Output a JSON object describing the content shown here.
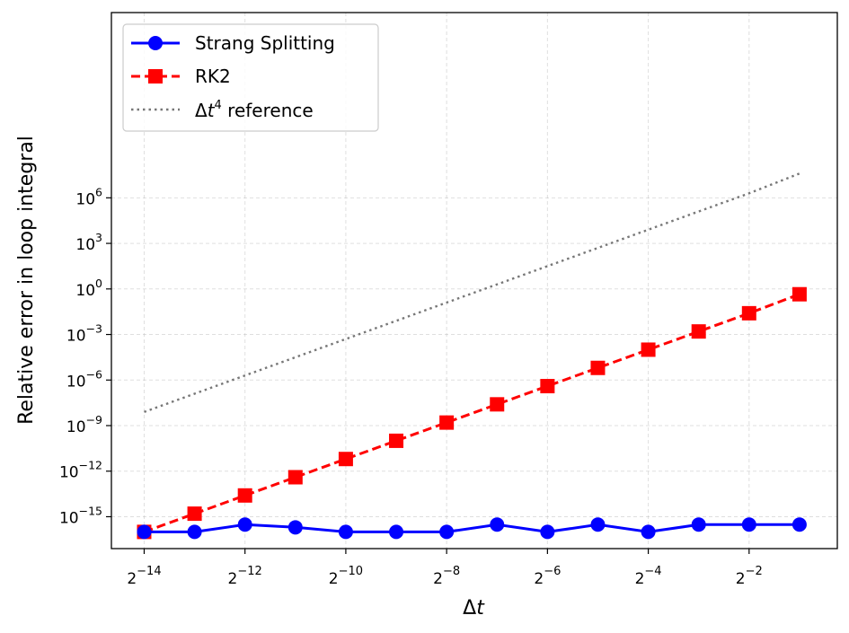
{
  "chart_data": {
    "type": "line",
    "xscale": "log2",
    "yscale": "log10",
    "xlabel_base": "Δ",
    "xlabel_var": "t",
    "ylabel": "Relative error in loop integral",
    "x_exponents": [
      -14,
      -13,
      -12,
      -11,
      -10,
      -9,
      -8,
      -7,
      -6,
      -5,
      -4,
      -3,
      -2,
      -1
    ],
    "xlim_exp": [
      -14.65,
      -0.25
    ],
    "ylim_exp": [
      -17.1,
      18.2
    ],
    "x_ticks": [
      {
        "base": "2",
        "exp": "−14",
        "value": -14
      },
      {
        "base": "2",
        "exp": "−12",
        "value": -12
      },
      {
        "base": "2",
        "exp": "−10",
        "value": -10
      },
      {
        "base": "2",
        "exp": "−8",
        "value": -8
      },
      {
        "base": "2",
        "exp": "−6",
        "value": -6
      },
      {
        "base": "2",
        "exp": "−4",
        "value": -4
      },
      {
        "base": "2",
        "exp": "−2",
        "value": -2
      }
    ],
    "y_ticks": [
      {
        "base": "10",
        "exp": "6",
        "value": 6
      },
      {
        "base": "10",
        "exp": "3",
        "value": 3
      },
      {
        "base": "10",
        "exp": "0",
        "value": 0
      },
      {
        "base": "10",
        "exp": "−3",
        "value": -3
      },
      {
        "base": "10",
        "exp": "−6",
        "value": -6
      },
      {
        "base": "10",
        "exp": "−9",
        "value": -9
      },
      {
        "base": "10",
        "exp": "−12",
        "value": -12
      },
      {
        "base": "10",
        "exp": "−15",
        "value": -15
      }
    ],
    "grid": true,
    "legend_position": "top-left",
    "series": [
      {
        "name": "Strang Splitting",
        "color": "#0000ff",
        "marker": "circle",
        "linestyle": "solid",
        "log10_values": [
          -16.0,
          -16.0,
          -15.52,
          -15.7,
          -16.0,
          -16.0,
          -16.0,
          -15.52,
          -16.0,
          -15.52,
          -16.0,
          -15.52,
          -15.52,
          -15.52
        ]
      },
      {
        "name": "RK2",
        "color": "#ff0000",
        "marker": "square",
        "linestyle": "dashed",
        "log10_values": [
          -16.0,
          -14.8,
          -13.6,
          -12.4,
          -11.2,
          -10.0,
          -8.8,
          -7.6,
          -6.4,
          -5.2,
          -4.0,
          -2.8,
          -1.6,
          -0.35
        ]
      },
      {
        "name": "Δt⁴ reference",
        "legend_base": "Δ",
        "legend_var": "t",
        "legend_sup": "4",
        "legend_suffix": " reference",
        "color": "#777777",
        "marker": "none",
        "linestyle": "dotted",
        "log10_values": [
          -8.1,
          -6.9,
          -5.7,
          -4.5,
          -3.3,
          -2.1,
          -0.9,
          0.3,
          1.5,
          2.7,
          3.9,
          5.1,
          6.3,
          7.6
        ]
      }
    ]
  }
}
